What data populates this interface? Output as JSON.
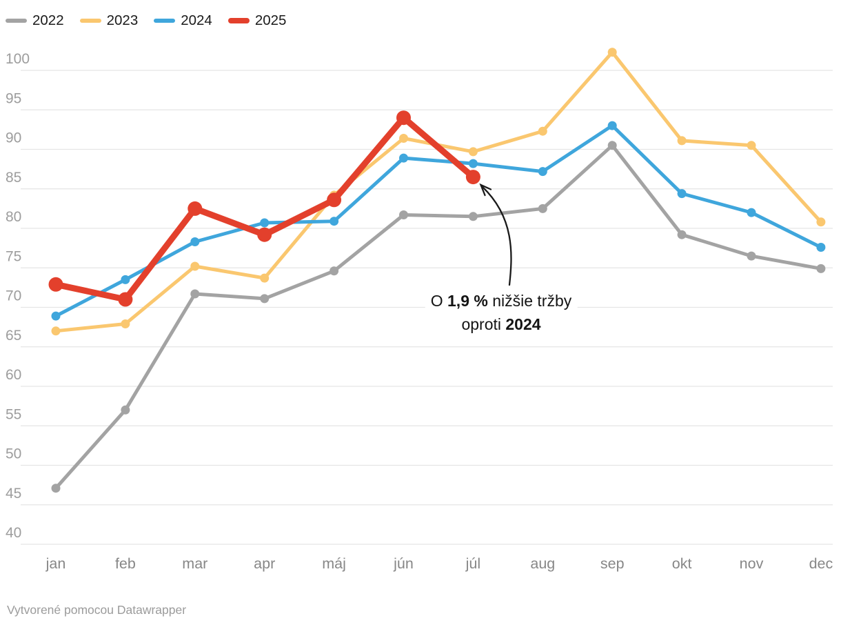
{
  "chart_data": {
    "type": "line",
    "title": "",
    "xlabel": "",
    "ylabel": "",
    "categories": [
      "jan",
      "feb",
      "mar",
      "apr",
      "máj",
      "jún",
      "júl",
      "aug",
      "sep",
      "okt",
      "nov",
      "dec"
    ],
    "series": [
      {
        "name": "2022",
        "color": "#a3a3a3",
        "emphasis": false,
        "values": [
          47.1,
          57.0,
          71.7,
          71.1,
          74.6,
          81.7,
          81.5,
          82.5,
          90.5,
          79.2,
          76.5,
          74.9
        ]
      },
      {
        "name": "2023",
        "color": "#fac76f",
        "emphasis": false,
        "values": [
          67.0,
          67.9,
          75.2,
          73.7,
          84.2,
          91.4,
          89.7,
          92.3,
          102.3,
          91.1,
          90.5,
          80.8
        ]
      },
      {
        "name": "2024",
        "color": "#3fa6dc",
        "emphasis": false,
        "values": [
          68.9,
          73.5,
          78.3,
          80.7,
          80.9,
          88.9,
          88.2,
          87.2,
          93.0,
          84.4,
          82.0,
          77.6
        ]
      },
      {
        "name": "2025",
        "color": "#e3402c",
        "emphasis": true,
        "values": [
          72.9,
          71.0,
          82.5,
          79.2,
          83.6,
          94.0,
          86.5,
          null,
          null,
          null,
          null,
          null
        ]
      }
    ],
    "yticks": [
      40,
      45,
      50,
      55,
      60,
      65,
      70,
      75,
      80,
      85,
      90,
      95,
      100
    ],
    "ylim": [
      40,
      103
    ],
    "grid": "horizontal",
    "legend_position": "top-left"
  },
  "legend": {
    "items": [
      "2022",
      "2023",
      "2024",
      "2025"
    ]
  },
  "annotation": {
    "line1_prefix": "O ",
    "line1_bold": "1,9 %",
    "line1_suffix": " nižšie tržby",
    "line2_prefix": "oproti ",
    "line2_bold": "2024"
  },
  "footer": {
    "text": "Vytvorené pomocou Datawrapper"
  },
  "colors": {
    "gridline": "#e5e5e5",
    "y_tick_label": "#9d9d9d",
    "x_tick_label": "#878787",
    "legend_text": "#1b1b1b",
    "annotation_text": "#141414",
    "arrow": "#1a1a1a",
    "background": "#ffffff"
  }
}
